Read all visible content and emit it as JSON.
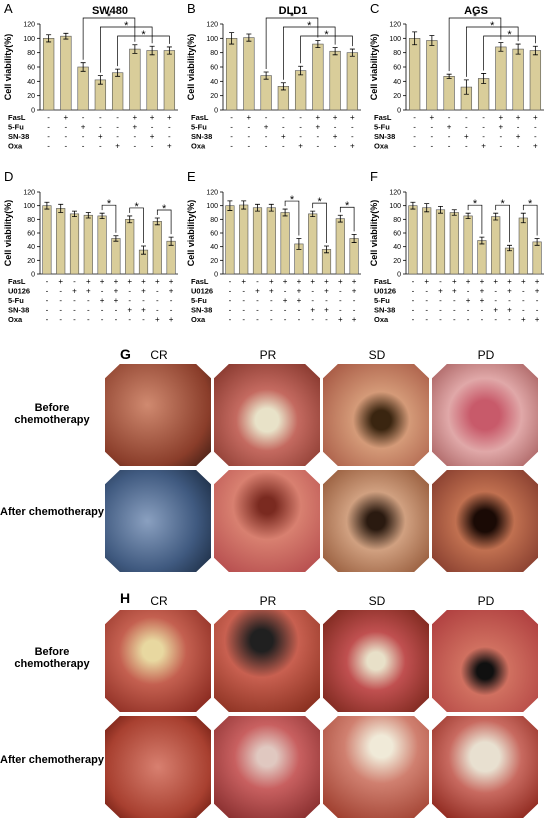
{
  "chart_data": [
    {
      "type": "bar",
      "label": "A",
      "title": "SW480",
      "ylabel": "Cell viability(%)",
      "color": "#d9cd9a",
      "values": [
        100,
        103,
        60,
        42,
        52,
        85,
        83,
        83
      ],
      "errors": [
        5,
        4,
        6,
        6,
        5,
        6,
        6,
        5
      ],
      "ylim": [
        0,
        120
      ],
      "yticks": [
        0,
        20,
        40,
        60,
        80,
        100,
        120
      ],
      "annotations": [
        "*",
        "*",
        "*"
      ],
      "treatment_rows": [
        {
          "name": "FasL",
          "signs": [
            "-",
            "+",
            "-",
            "-",
            "-",
            "+",
            "+",
            "+"
          ]
        },
        {
          "name": "5-Fu",
          "signs": [
            "-",
            "-",
            "+",
            "-",
            "-",
            "+",
            "-",
            "-"
          ]
        },
        {
          "name": "SN-38",
          "signs": [
            "-",
            "-",
            "-",
            "+",
            "-",
            "-",
            "+",
            "-"
          ]
        },
        {
          "name": "Oxa",
          "signs": [
            "-",
            "-",
            "-",
            "-",
            "+",
            "-",
            "-",
            "+"
          ]
        }
      ]
    },
    {
      "type": "bar",
      "label": "B",
      "title": "DLD1",
      "ylabel": "Cell viability(%)",
      "color": "#d9cd9a",
      "values": [
        100,
        101,
        48,
        33,
        55,
        92,
        82,
        80
      ],
      "errors": [
        8,
        5,
        5,
        5,
        6,
        5,
        5,
        5
      ],
      "ylim": [
        0,
        120
      ],
      "yticks": [
        0,
        20,
        40,
        60,
        80,
        100,
        120
      ],
      "annotations": [
        "*",
        "*",
        "*"
      ],
      "treatment_rows": [
        {
          "name": "FasL",
          "signs": [
            "-",
            "+",
            "-",
            "-",
            "-",
            "+",
            "+",
            "+"
          ]
        },
        {
          "name": "5-Fu",
          "signs": [
            "-",
            "-",
            "+",
            "-",
            "-",
            "+",
            "-",
            "-"
          ]
        },
        {
          "name": "SN-38",
          "signs": [
            "-",
            "-",
            "-",
            "+",
            "-",
            "-",
            "+",
            "-"
          ]
        },
        {
          "name": "Oxa",
          "signs": [
            "-",
            "-",
            "-",
            "-",
            "+",
            "-",
            "-",
            "+"
          ]
        }
      ]
    },
    {
      "type": "bar",
      "label": "C",
      "title": "AGS",
      "ylabel": "Cell viability(%)",
      "color": "#d9cd9a",
      "values": [
        100,
        97,
        47,
        32,
        44,
        88,
        85,
        83
      ],
      "errors": [
        9,
        7,
        3,
        10,
        7,
        6,
        7,
        6
      ],
      "ylim": [
        0,
        120
      ],
      "yticks": [
        0,
        20,
        40,
        60,
        80,
        100,
        120
      ],
      "annotations": [
        "*",
        "*",
        "*"
      ],
      "treatment_rows": [
        {
          "name": "FasL",
          "signs": [
            "-",
            "+",
            "-",
            "-",
            "-",
            "+",
            "+",
            "+"
          ]
        },
        {
          "name": "5-Fu",
          "signs": [
            "-",
            "-",
            "+",
            "-",
            "-",
            "+",
            "-",
            "-"
          ]
        },
        {
          "name": "SN-38",
          "signs": [
            "-",
            "-",
            "-",
            "+",
            "-",
            "-",
            "+",
            "-"
          ]
        },
        {
          "name": "Oxa",
          "signs": [
            "-",
            "-",
            "-",
            "-",
            "+",
            "-",
            "-",
            "+"
          ]
        }
      ]
    },
    {
      "type": "bar",
      "label": "D",
      "title": null,
      "ylabel": "Cell viability(%)",
      "color": "#d9cd9a",
      "values": [
        100,
        96,
        88,
        86,
        85,
        52,
        80,
        35,
        77,
        48
      ],
      "errors": [
        5,
        6,
        4,
        4,
        4,
        4,
        5,
        6,
        5,
        6
      ],
      "ylim": [
        0,
        120
      ],
      "yticks": [
        0,
        20,
        40,
        60,
        80,
        100,
        120
      ],
      "annotations": [
        "*",
        "*",
        "*"
      ],
      "treatment_rows": [
        {
          "name": "FasL",
          "signs": [
            "-",
            "+",
            "-",
            "+",
            "+",
            "+",
            "+",
            "+",
            "+",
            "+"
          ]
        },
        {
          "name": "U0126",
          "signs": [
            "-",
            "-",
            "+",
            "+",
            "-",
            "+",
            "-",
            "+",
            "-",
            "+"
          ]
        },
        {
          "name": "5-Fu",
          "signs": [
            "-",
            "-",
            "-",
            "-",
            "+",
            "+",
            "-",
            "-",
            "-",
            "-"
          ]
        },
        {
          "name": "SN-38",
          "signs": [
            "-",
            "-",
            "-",
            "-",
            "-",
            "-",
            "+",
            "+",
            "-",
            "-"
          ]
        },
        {
          "name": "Oxa",
          "signs": [
            "-",
            "-",
            "-",
            "-",
            "-",
            "-",
            "-",
            "-",
            "+",
            "+"
          ]
        }
      ]
    },
    {
      "type": "bar",
      "label": "E",
      "title": null,
      "ylabel": "Cell viability(%)",
      "color": "#d9cd9a",
      "values": [
        100,
        101,
        97,
        97,
        90,
        44,
        88,
        36,
        81,
        52
      ],
      "errors": [
        7,
        6,
        5,
        5,
        5,
        8,
        4,
        5,
        5,
        6
      ],
      "ylim": [
        0,
        120
      ],
      "yticks": [
        0,
        20,
        40,
        60,
        80,
        100,
        120
      ],
      "annotations": [
        "*",
        "*",
        "*"
      ],
      "treatment_rows": [
        {
          "name": "FasL",
          "signs": [
            "-",
            "+",
            "-",
            "+",
            "+",
            "+",
            "+",
            "+",
            "+",
            "+"
          ]
        },
        {
          "name": "U0126",
          "signs": [
            "-",
            "-",
            "+",
            "+",
            "-",
            "+",
            "-",
            "+",
            "-",
            "+"
          ]
        },
        {
          "name": "5-Fu",
          "signs": [
            "-",
            "-",
            "-",
            "-",
            "+",
            "+",
            "-",
            "-",
            "-",
            "-"
          ]
        },
        {
          "name": "SN-38",
          "signs": [
            "-",
            "-",
            "-",
            "-",
            "-",
            "-",
            "+",
            "+",
            "-",
            "-"
          ]
        },
        {
          "name": "Oxa",
          "signs": [
            "-",
            "-",
            "-",
            "-",
            "-",
            "-",
            "-",
            "-",
            "+",
            "+"
          ]
        }
      ]
    },
    {
      "type": "bar",
      "label": "F",
      "title": null,
      "ylabel": "Cell viability(%)",
      "color": "#d9cd9a",
      "values": [
        100,
        97,
        94,
        90,
        85,
        49,
        84,
        38,
        82,
        47
      ],
      "errors": [
        5,
        6,
        5,
        4,
        4,
        5,
        5,
        4,
        7,
        5
      ],
      "ylim": [
        0,
        120
      ],
      "yticks": [
        0,
        20,
        40,
        60,
        80,
        100,
        120
      ],
      "annotations": [
        "*",
        "*",
        "*"
      ],
      "treatment_rows": [
        {
          "name": "FasL",
          "signs": [
            "-",
            "+",
            "-",
            "+",
            "+",
            "+",
            "+",
            "+",
            "+",
            "+"
          ]
        },
        {
          "name": "U0126",
          "signs": [
            "-",
            "-",
            "+",
            "+",
            "-",
            "+",
            "-",
            "+",
            "-",
            "+"
          ]
        },
        {
          "name": "5-Fu",
          "signs": [
            "-",
            "-",
            "-",
            "-",
            "+",
            "+",
            "-",
            "-",
            "-",
            "-"
          ]
        },
        {
          "name": "SN-38",
          "signs": [
            "-",
            "-",
            "-",
            "-",
            "-",
            "-",
            "+",
            "+",
            "-",
            "-"
          ]
        },
        {
          "name": "Oxa",
          "signs": [
            "-",
            "-",
            "-",
            "-",
            "-",
            "-",
            "-",
            "-",
            "+",
            "+"
          ]
        }
      ]
    }
  ],
  "panel_g": {
    "label": "G",
    "columns": [
      "CR",
      "PR",
      "SD",
      "PD"
    ],
    "rows": [
      "Before chemotherapy",
      "After chemotherapy"
    ]
  },
  "panel_h": {
    "label": "H",
    "columns": [
      "CR",
      "PR",
      "SD",
      "PD"
    ],
    "rows": [
      "Before chemotherapy",
      "After chemotherapy"
    ]
  }
}
